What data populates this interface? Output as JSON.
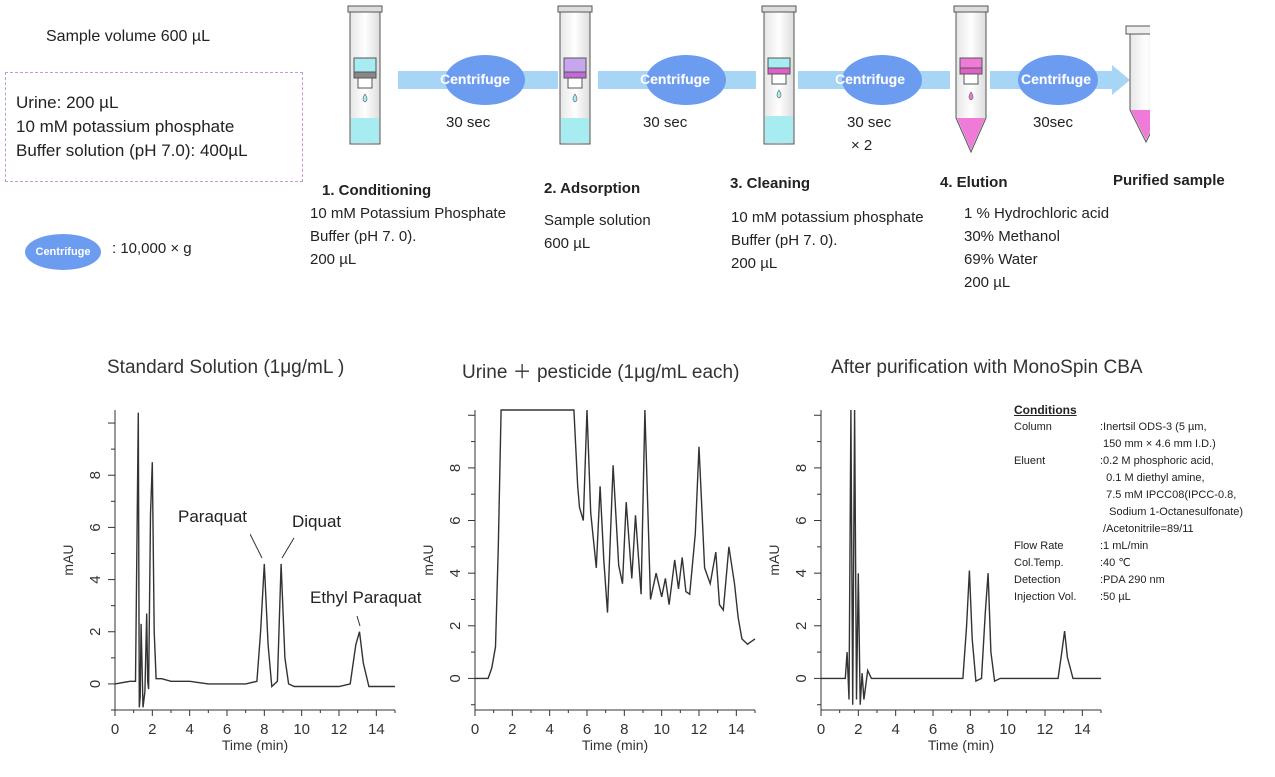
{
  "sample": {
    "volume_label": "Sample volume 600 µL",
    "box_lines": [
      "Urine: 200 µL",
      "10 mM potassium phosphate",
      "Buffer solution (pH 7.0): 400µL"
    ]
  },
  "legend": {
    "centrifuge_label": "Centrifuge",
    "speed": ": 10,000 × g"
  },
  "steps": [
    {
      "title": "1. Conditioning",
      "lines": [
        "10 mM Potassium Phosphate",
        "Buffer (pH 7. 0).",
        "200 µL"
      ]
    },
    {
      "title": "2. Adsorption",
      "lines": [
        "Sample solution",
        "600 µL"
      ]
    },
    {
      "title": "3. Cleaning",
      "lines": [
        "10 mM potassium phosphate",
        "Buffer (pH 7. 0).",
        "200 µL"
      ]
    },
    {
      "title": "4. Elution",
      "lines": [
        "1 % Hydrochloric acid",
        "30% Methanol",
        "69% Water",
        "200 µL"
      ]
    },
    {
      "title": "Purified sample",
      "lines": []
    }
  ],
  "centrifuges": [
    {
      "label": "Centrifuge",
      "time": "30 sec",
      "extra": ""
    },
    {
      "label": "Centrifuge",
      "time": "30 sec",
      "extra": ""
    },
    {
      "label": "Centrifuge",
      "time": "30 sec",
      "extra": "× 2"
    },
    {
      "label": "Centrifuge",
      "time": "30sec",
      "extra": ""
    }
  ],
  "colors": {
    "arrow": "#a7d5f5",
    "centrifuge": "#6b9cf0",
    "buffer": "#a6ecf0",
    "sample": "#c8a6ee",
    "eluate": "#f07ad8"
  },
  "chromatograms": {
    "ylabel": "mAU",
    "xlabel": "Time (min)",
    "panels": [
      {
        "title": "Standard Solution (1μg/mL )",
        "peak_labels": [
          "Paraquat",
          "Diquat",
          "Ethyl Paraquat"
        ]
      },
      {
        "title": "Urine ＋ pesticide (1μg/mL each)",
        "peak_labels": []
      },
      {
        "title": "After purification with MonoSpin CBA",
        "peak_labels": []
      }
    ]
  },
  "conditions": {
    "heading": "Conditions",
    "rows": [
      [
        "Column",
        ":Inertsil ODS-3 (5 µm,"
      ],
      [
        "",
        " 150 mm × 4.6 mm I.D.)"
      ],
      [
        "Eluent",
        ":0.2 M phosphoric acid,"
      ],
      [
        "",
        "  0.1 M diethyl amine,"
      ],
      [
        "",
        "  7.5 mM IPCC08(IPCC-0.8,"
      ],
      [
        "",
        "   Sodium 1-Octanesulfonate)"
      ],
      [
        "",
        " /Acetonitrile=89/11"
      ],
      [
        "Flow Rate",
        ":1 mL/min"
      ],
      [
        "Col.Temp.",
        ":40 ℃"
      ],
      [
        "Detection",
        ":PDA 290 nm"
      ],
      [
        "Injection Vol.",
        ":50 µL"
      ]
    ]
  },
  "chart_data": [
    {
      "type": "line",
      "title": "Standard Solution (1μg/mL )",
      "xlabel": "Time (min)",
      "ylabel": "mAU",
      "xlim": [
        0,
        15
      ],
      "ylim": [
        -1,
        10.5
      ],
      "xticks": [
        0,
        2,
        4,
        6,
        8,
        10,
        12,
        14
      ],
      "yticks": [
        0,
        2,
        4,
        6,
        8
      ],
      "series": [
        {
          "x": [
            0,
            0.8,
            1.1,
            1.25,
            1.3,
            1.35,
            1.4,
            1.5,
            1.6,
            1.7,
            1.75,
            1.8,
            1.9,
            2.0,
            2.1,
            2.2,
            2.5,
            3,
            4,
            5,
            6,
            7,
            7.6,
            7.8,
            8.0,
            8.2,
            8.4,
            8.7,
            8.9,
            9.1,
            9.3,
            9.6,
            10,
            11,
            12,
            12.6,
            12.9,
            13.1,
            13.3,
            13.6,
            14,
            15
          ],
          "y": [
            0,
            0.1,
            0.1,
            10.4,
            -0.9,
            -0.5,
            2.3,
            -0.9,
            -0.3,
            2.7,
            0.1,
            -0.2,
            6.5,
            8.5,
            2.0,
            0.2,
            0.2,
            0.1,
            0.1,
            0,
            0,
            0,
            0.1,
            2.0,
            4.6,
            1.5,
            -0.1,
            0.1,
            4.6,
            1.0,
            0.0,
            -0.1,
            -0.1,
            -0.1,
            -0.1,
            0.0,
            1.5,
            2.0,
            0.8,
            -0.1,
            -0.1,
            -0.1
          ]
        }
      ]
    },
    {
      "type": "line",
      "title": "Urine ＋ pesticide (1μg/mL each)",
      "xlabel": "Time (min)",
      "ylabel": "mAU",
      "xlim": [
        0,
        15
      ],
      "ylim": [
        -1.2,
        10.2
      ],
      "xticks": [
        0,
        2,
        4,
        6,
        8,
        10,
        12,
        14
      ],
      "yticks": [
        0,
        2,
        4,
        6,
        8
      ],
      "series": [
        {
          "x": [
            0,
            0.7,
            0.9,
            1.1,
            1.25,
            1.4,
            5.3,
            5.5,
            5.6,
            5.8,
            6.0,
            6.2,
            6.5,
            6.7,
            6.9,
            7.1,
            7.4,
            7.7,
            7.9,
            8.1,
            8.4,
            8.6,
            8.9,
            9.1,
            9.4,
            9.7,
            10.0,
            10.2,
            10.4,
            10.7,
            10.9,
            11.1,
            11.3,
            11.5,
            11.8,
            12.0,
            12.3,
            12.6,
            12.9,
            13.1,
            13.3,
            13.6,
            13.9,
            14.1,
            14.3,
            14.6,
            15.0
          ],
          "y": [
            0,
            0,
            0.4,
            1.2,
            5.0,
            10.2,
            10.2,
            7.3,
            6.5,
            6.0,
            10.2,
            6.3,
            4.2,
            7.3,
            4.5,
            2.5,
            8.1,
            4.3,
            3.6,
            6.7,
            3.8,
            6.2,
            3.2,
            10.2,
            3.0,
            4.0,
            3.1,
            3.8,
            2.8,
            4.5,
            3.4,
            4.6,
            3.3,
            3.2,
            5.5,
            8.8,
            4.2,
            3.6,
            4.8,
            2.8,
            2.6,
            5.0,
            3.6,
            2.3,
            1.5,
            1.3,
            1.5
          ]
        }
      ]
    },
    {
      "type": "line",
      "title": "After purification with MonoSpin CBA",
      "xlabel": "Time (min)",
      "ylabel": "mAU",
      "xlim": [
        0,
        15
      ],
      "ylim": [
        -1.2,
        10.2
      ],
      "xticks": [
        0,
        2,
        4,
        6,
        8,
        10,
        12,
        14
      ],
      "yticks": [
        0,
        2,
        4,
        6,
        8
      ],
      "series": [
        {
          "x": [
            0,
            1.0,
            1.3,
            1.4,
            1.5,
            1.6,
            1.7,
            1.8,
            1.9,
            2.0,
            2.1,
            2.2,
            2.3,
            2.5,
            2.7,
            3,
            4,
            5,
            6,
            7,
            7.6,
            7.8,
            7.95,
            8.1,
            8.3,
            8.6,
            8.8,
            8.95,
            9.1,
            9.3,
            9.6,
            10,
            11,
            12,
            12.7,
            12.9,
            13.05,
            13.2,
            13.5,
            14,
            15
          ],
          "y": [
            0,
            0,
            0,
            1.0,
            -0.8,
            10.2,
            -1.0,
            10.2,
            -0.8,
            4.0,
            -1.0,
            0.2,
            -0.8,
            0.3,
            0,
            0,
            0,
            0,
            0,
            0,
            0.0,
            2.0,
            4.1,
            1.5,
            -0.1,
            0.0,
            2.5,
            4.0,
            1.0,
            -0.1,
            0,
            0,
            0,
            0,
            0.0,
            1.0,
            1.8,
            0.8,
            0.0,
            0,
            0
          ]
        }
      ]
    }
  ]
}
